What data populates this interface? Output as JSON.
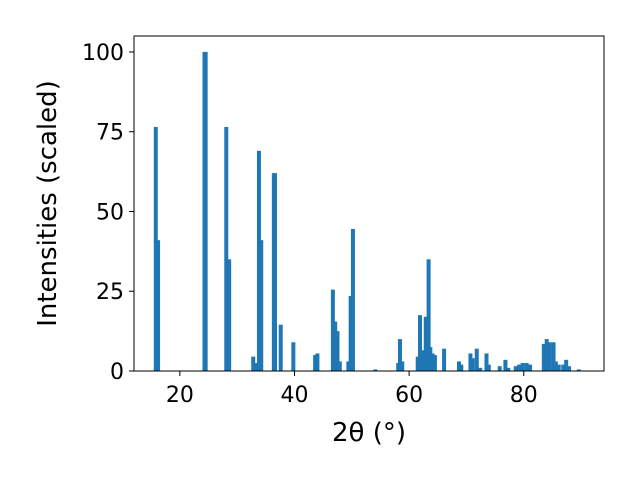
{
  "chart_data": {
    "type": "bar",
    "xlabel": "2θ (°)",
    "ylabel": "Intensities (scaled)",
    "xlim": [
      12,
      94
    ],
    "ylim": [
      0,
      105
    ],
    "xticks": [
      20,
      40,
      60,
      80
    ],
    "yticks": [
      0,
      25,
      50,
      75,
      100
    ],
    "grid": false,
    "bar_color": "#1f77b4",
    "series": [
      {
        "x": [
          15.8,
          16.2,
          24.3,
          24.5,
          28.1,
          28.6,
          32.8,
          33.2,
          33.8,
          34.2,
          36.4,
          36.6,
          37.6,
          39.8,
          43.6,
          44.0,
          46.7,
          47.1,
          47.5,
          47.9,
          49.4,
          49.8,
          50.2,
          54.1,
          58.1,
          58.4,
          58.8,
          61.5,
          61.9,
          62.3,
          62.9,
          63.4,
          63.7,
          64.1,
          64.5,
          66.1,
          68.7,
          69.1,
          70.7,
          71.1,
          71.8,
          72.4,
          73.5,
          73.9,
          75.8,
          76.8,
          77.3,
          78.6,
          79.2,
          79.8,
          80.5,
          81.1,
          83.5,
          84.0,
          84.5,
          85.2,
          85.6,
          86.1,
          86.9,
          87.4,
          87.9,
          89.6
        ],
        "y": [
          76.5,
          41,
          100,
          100,
          76.5,
          35,
          4.5,
          2.5,
          69,
          41,
          62,
          62,
          14.5,
          9,
          5,
          5.5,
          25.5,
          15.5,
          12.5,
          3,
          3,
          23.5,
          44.5,
          0.5,
          2.5,
          10,
          3,
          4.5,
          17.5,
          6.5,
          17,
          35,
          7.5,
          5.5,
          5,
          7,
          3,
          2,
          5.5,
          4,
          7,
          1,
          5.5,
          2,
          1.5,
          3.5,
          1,
          1.5,
          2,
          2.5,
          2.5,
          2,
          8.5,
          10,
          9,
          9,
          3,
          2,
          2,
          3.5,
          1.5,
          0.5
        ]
      }
    ]
  }
}
